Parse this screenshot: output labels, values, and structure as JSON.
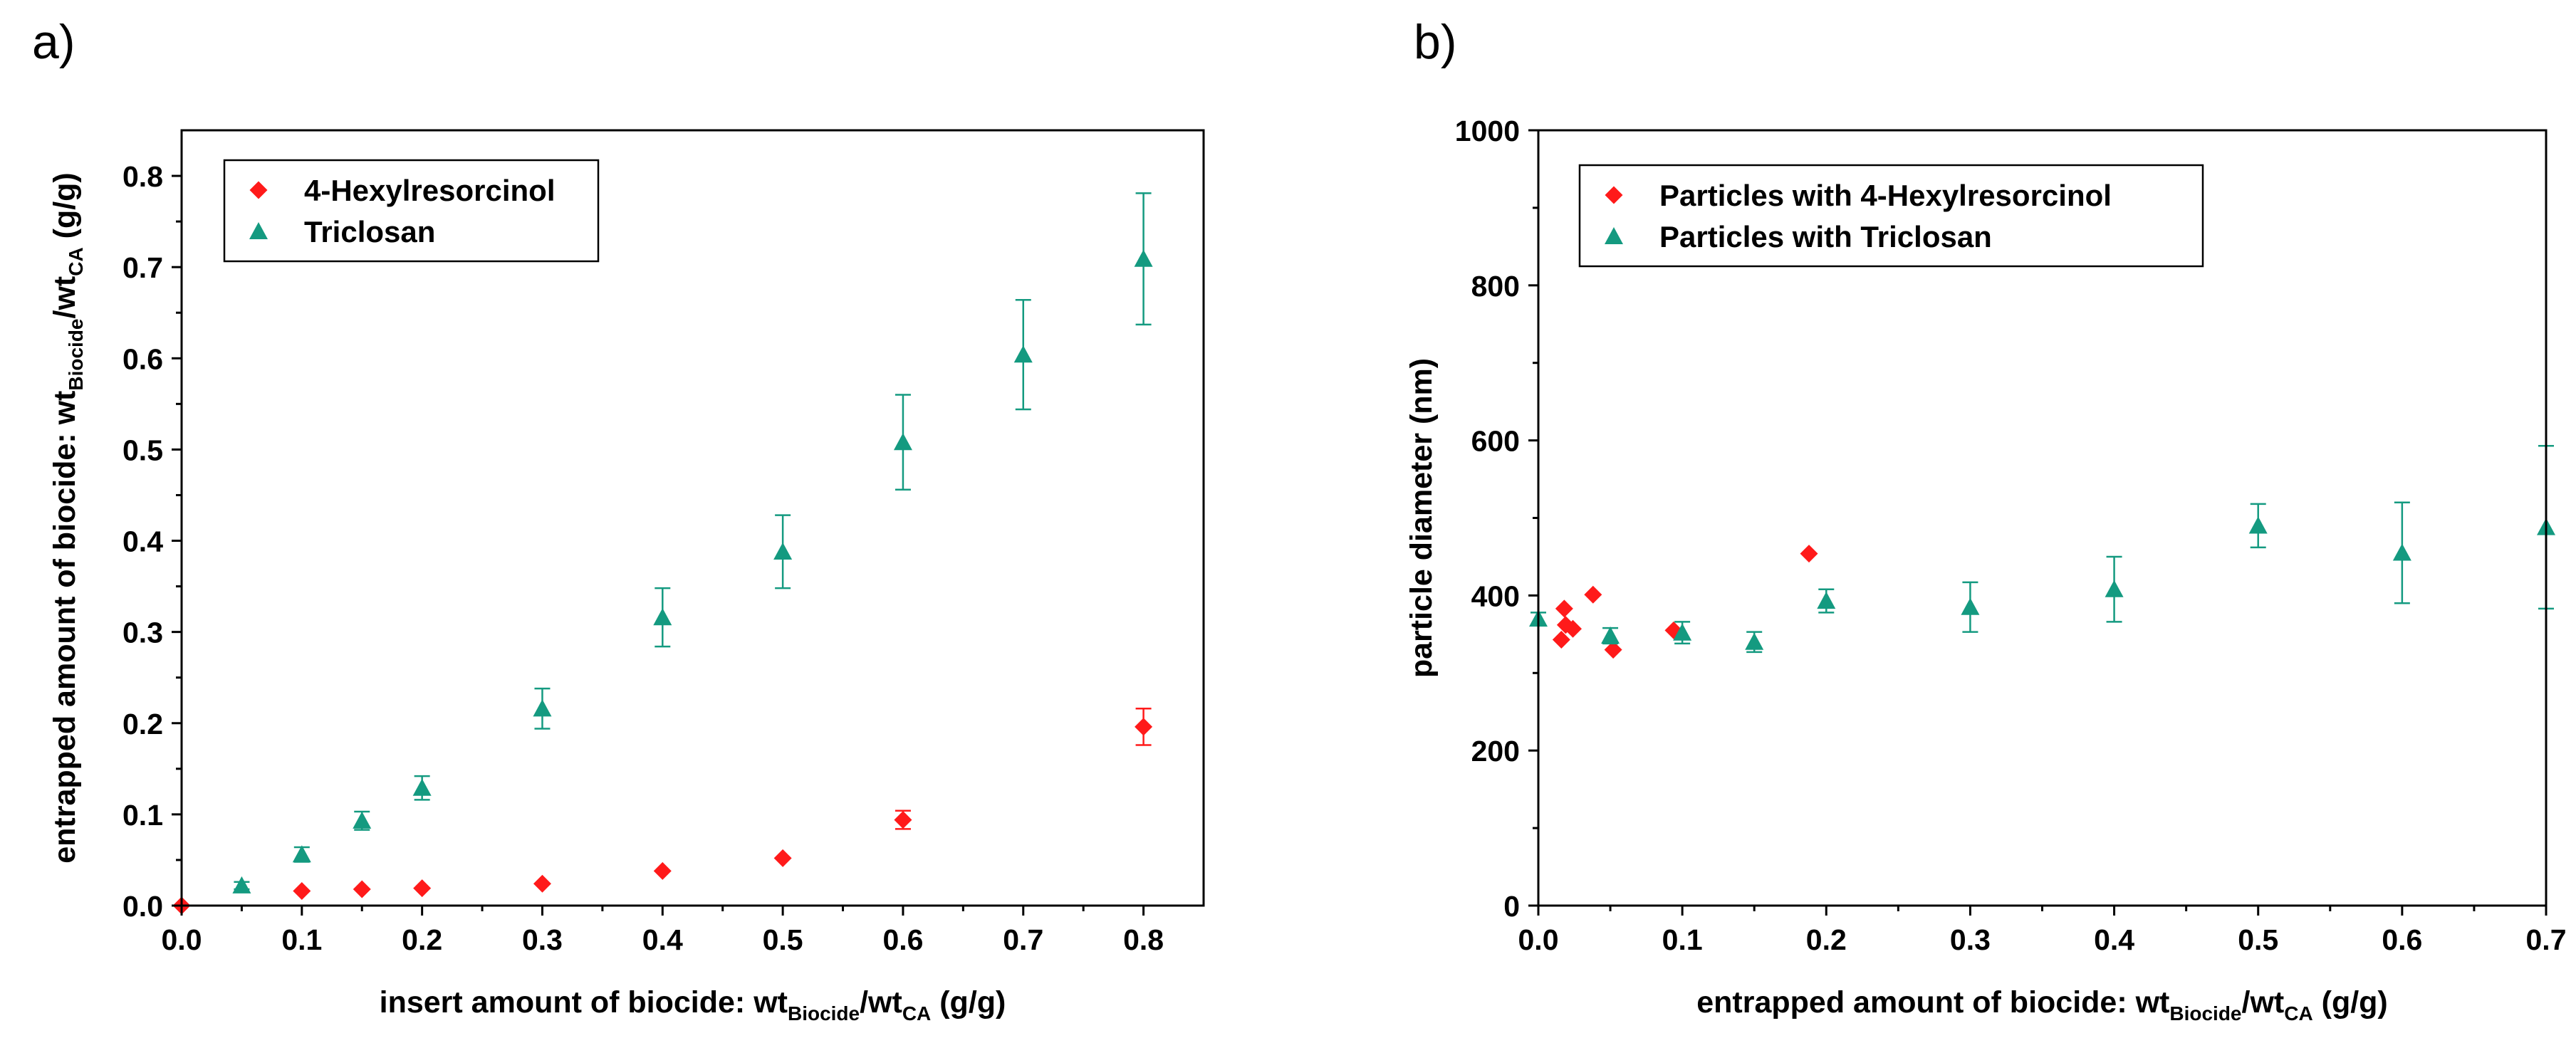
{
  "colors": {
    "hexylresorcinol": "#ff1a1a",
    "triclosan": "#149a80",
    "axis": "#000000"
  },
  "chart_data": [
    {
      "type": "scatter",
      "panel_label": "a)",
      "xlabel": {
        "main": "insert amount of biocide: wt",
        "sub1": "Biocide",
        "mid": "/wt",
        "sub2": "CA",
        "end": " (g/g)"
      },
      "ylabel": {
        "main": "entrapped amount of biocide: wt",
        "sub1": "Biocide",
        "mid": "/wt",
        "sub2": "CA",
        "end": " (g/g)"
      },
      "xlim": [
        0,
        0.85
      ],
      "ylim": [
        0,
        0.85
      ],
      "xticks": [
        0.0,
        0.1,
        0.2,
        0.3,
        0.4,
        0.5,
        0.6,
        0.7,
        0.8
      ],
      "xtick_labels": [
        "0.0",
        "0.1",
        "0.2",
        "0.3",
        "0.4",
        "0.5",
        "0.6",
        "0.7",
        "0.8"
      ],
      "yticks": [
        0.0,
        0.1,
        0.2,
        0.3,
        0.4,
        0.5,
        0.6,
        0.7,
        0.8
      ],
      "ytick_labels": [
        "0.0",
        "0.1",
        "0.2",
        "0.3",
        "0.4",
        "0.5",
        "0.6",
        "0.7",
        "0.8"
      ],
      "legend_position": "top-left",
      "series": [
        {
          "name": "4-Hexylresorcinol",
          "marker": "diamond",
          "color": "#ff1a1a",
          "x": [
            0.0,
            0.1,
            0.15,
            0.2,
            0.3,
            0.4,
            0.5,
            0.6,
            0.8
          ],
          "y": [
            0.0,
            0.016,
            0.018,
            0.019,
            0.024,
            0.038,
            0.052,
            0.094,
            0.196
          ],
          "err": [
            0,
            0,
            0,
            0,
            0,
            0,
            0,
            0.01,
            0.02
          ]
        },
        {
          "name": "Triclosan",
          "marker": "triangle",
          "color": "#149a80",
          "x": [
            0.05,
            0.1,
            0.15,
            0.2,
            0.3,
            0.4,
            0.5,
            0.6,
            0.7,
            0.8
          ],
          "y": [
            0.022,
            0.056,
            0.093,
            0.129,
            0.216,
            0.316,
            0.388,
            0.508,
            0.604,
            0.709
          ],
          "err": [
            0.004,
            0.008,
            0.01,
            0.013,
            0.022,
            0.032,
            0.04,
            0.052,
            0.06,
            0.072
          ]
        }
      ]
    },
    {
      "type": "scatter",
      "panel_label": "b)",
      "xlabel": {
        "main": "entrapped amount of biocide: wt",
        "sub1": "Biocide",
        "mid": "/wt",
        "sub2": "CA",
        "end": " (g/g)"
      },
      "ylabel": {
        "main": "particle diameter (nm)",
        "sub1": "",
        "mid": "",
        "sub2": "",
        "end": ""
      },
      "xlim": [
        0,
        0.7
      ],
      "ylim": [
        0,
        1000
      ],
      "xticks": [
        0.0,
        0.1,
        0.2,
        0.3,
        0.4,
        0.5,
        0.6,
        0.7
      ],
      "xtick_labels": [
        "0.0",
        "0.1",
        "0.2",
        "0.3",
        "0.4",
        "0.5",
        "0.6",
        "0.7"
      ],
      "yticks": [
        0,
        200,
        400,
        600,
        800,
        1000
      ],
      "ytick_labels": [
        "0",
        "200",
        "400",
        "600",
        "800",
        "1000"
      ],
      "legend_position": "top-left",
      "series": [
        {
          "name": "Particles with 4-Hexylresorcinol",
          "marker": "diamond",
          "color": "#ff1a1a",
          "x": [
            0.016,
            0.018,
            0.019,
            0.024,
            0.038,
            0.052,
            0.094,
            0.188
          ],
          "y": [
            343,
            383,
            362,
            357,
            401,
            330,
            355,
            454
          ],
          "err": [
            0,
            0,
            0,
            0,
            0,
            0,
            0,
            0
          ]
        },
        {
          "name": "Particles with Triclosan",
          "marker": "triangle",
          "color": "#149a80",
          "x": [
            0.0,
            0.05,
            0.1,
            0.15,
            0.2,
            0.3,
            0.4,
            0.5,
            0.6,
            0.7
          ],
          "y": [
            370,
            348,
            352,
            340,
            393,
            385,
            408,
            490,
            455,
            488
          ],
          "err": [
            8,
            10,
            14,
            13,
            15,
            32,
            42,
            28,
            65,
            105
          ]
        }
      ]
    }
  ]
}
